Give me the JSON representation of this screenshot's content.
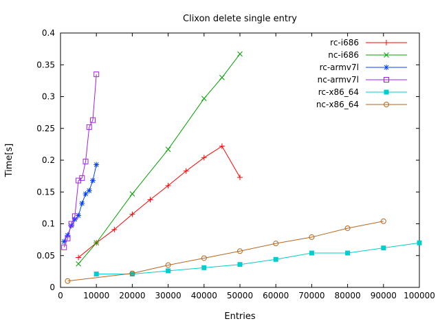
{
  "window": {
    "background": "#ffffff",
    "border_color": "#000000"
  },
  "chart_data": {
    "type": "line",
    "title": "Clixon delete single entry",
    "xlabel": "Entries",
    "ylabel": "Time[s]",
    "xlim": [
      0,
      100000
    ],
    "ylim": [
      0,
      0.4
    ],
    "grid": false,
    "legend_position": "top-right-inside",
    "x_ticks": [
      0,
      10000,
      20000,
      30000,
      40000,
      50000,
      60000,
      70000,
      80000,
      90000,
      100000
    ],
    "x_tick_labels": [
      "0",
      "10000",
      "20000",
      "30000",
      "40000",
      "50000",
      "60000",
      "70000",
      "80000",
      "90000",
      "100000"
    ],
    "y_ticks": [
      0,
      0.05,
      0.1,
      0.15,
      0.2,
      0.25,
      0.3,
      0.35,
      0.4
    ],
    "y_tick_labels": [
      "0",
      "0.05",
      "0.1",
      "0.15",
      "0.2",
      "0.25",
      "0.3",
      "0.35",
      "0.4"
    ],
    "series": [
      {
        "name": "rc-i686",
        "color": "#ff0000",
        "marker": "plus",
        "points": [
          [
            5000,
            0.047
          ],
          [
            10000,
            0.07
          ],
          [
            15000,
            0.091
          ],
          [
            20000,
            0.115
          ],
          [
            25000,
            0.138
          ],
          [
            30000,
            0.16
          ],
          [
            35000,
            0.183
          ],
          [
            40000,
            0.204
          ],
          [
            45000,
            0.222
          ],
          [
            50000,
            0.173
          ]
        ]
      },
      {
        "name": "nc-i686",
        "color": "#00a000",
        "marker": "cross",
        "points": [
          [
            5000,
            0.037
          ],
          [
            10000,
            0.07
          ],
          [
            20000,
            0.147
          ],
          [
            30000,
            0.217
          ],
          [
            40000,
            0.297
          ],
          [
            45000,
            0.33
          ],
          [
            50000,
            0.367
          ]
        ]
      },
      {
        "name": "rc-armv7l",
        "color": "#0040ff",
        "marker": "asterisk",
        "points": [
          [
            1000,
            0.072
          ],
          [
            2000,
            0.082
          ],
          [
            3000,
            0.097
          ],
          [
            4000,
            0.107
          ],
          [
            5000,
            0.113
          ],
          [
            6000,
            0.132
          ],
          [
            7000,
            0.147
          ],
          [
            8000,
            0.152
          ],
          [
            9000,
            0.168
          ],
          [
            10000,
            0.193
          ]
        ]
      },
      {
        "name": "nc-armv7l",
        "color": "#a020f0",
        "marker": "open-square",
        "points": [
          [
            1000,
            0.063
          ],
          [
            2000,
            0.077
          ],
          [
            3000,
            0.1
          ],
          [
            4000,
            0.112
          ],
          [
            5000,
            0.168
          ],
          [
            6000,
            0.172
          ],
          [
            7000,
            0.198
          ],
          [
            8000,
            0.252
          ],
          [
            9000,
            0.263
          ],
          [
            10000,
            0.335
          ]
        ]
      },
      {
        "name": "rc-x86_64",
        "color": "#00cdcd",
        "marker": "filled-square",
        "points": [
          [
            10000,
            0.021
          ],
          [
            20000,
            0.021
          ],
          [
            30000,
            0.026
          ],
          [
            40000,
            0.031
          ],
          [
            50000,
            0.036
          ],
          [
            60000,
            0.044
          ],
          [
            70000,
            0.054
          ],
          [
            80000,
            0.054
          ],
          [
            90000,
            0.062
          ],
          [
            100000,
            0.07
          ]
        ]
      },
      {
        "name": "nc-x86_64",
        "color": "#b5651d",
        "marker": "open-circle",
        "points": [
          [
            2000,
            0.01
          ],
          [
            20000,
            0.022
          ],
          [
            30000,
            0.035
          ],
          [
            40000,
            0.046
          ],
          [
            50000,
            0.057
          ],
          [
            60000,
            0.069
          ],
          [
            70000,
            0.079
          ],
          [
            80000,
            0.093
          ],
          [
            90000,
            0.104
          ]
        ]
      }
    ]
  }
}
